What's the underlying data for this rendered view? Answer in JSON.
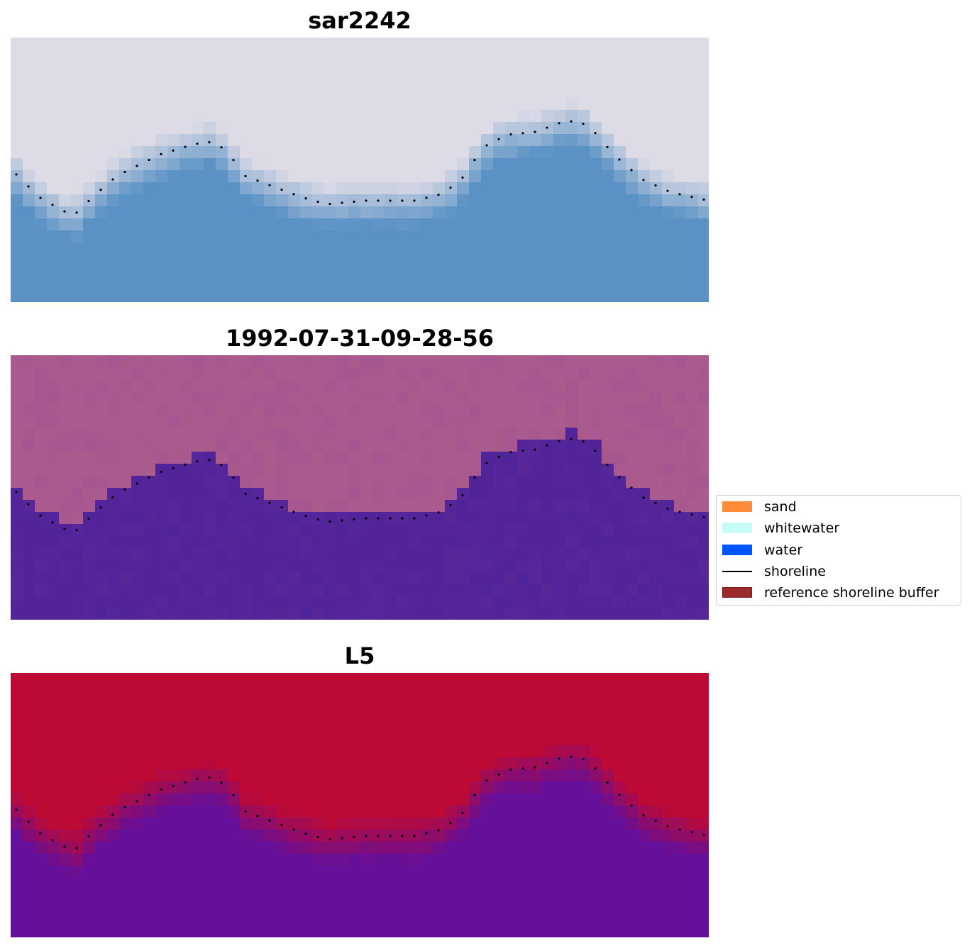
{
  "panels": [
    {
      "title": "sar2242",
      "kind": "rgb"
    },
    {
      "title": "1992-07-31-09-28-56",
      "kind": "classification"
    },
    {
      "title": "L5",
      "kind": "index"
    }
  ],
  "legend": {
    "items": [
      {
        "label": "sand",
        "color": "#ff8c3a",
        "type": "patch"
      },
      {
        "label": "whitewater",
        "color": "#c8fcfa",
        "type": "patch"
      },
      {
        "label": "water",
        "color": "#0055ff",
        "type": "patch"
      },
      {
        "label": "shoreline",
        "color": "#000000",
        "type": "line"
      },
      {
        "label": "reference shoreline buffer",
        "color": "#9b2a2a",
        "type": "patch"
      }
    ]
  },
  "colors": {
    "rgb_land": "#dcdbe6",
    "rgb_water": "#5a92c5",
    "class_land": "#ab5a8e",
    "class_water": "#52249a",
    "index_land": "#bd0a35",
    "index_water": "#650f9a",
    "shoreline": "#000000"
  }
}
